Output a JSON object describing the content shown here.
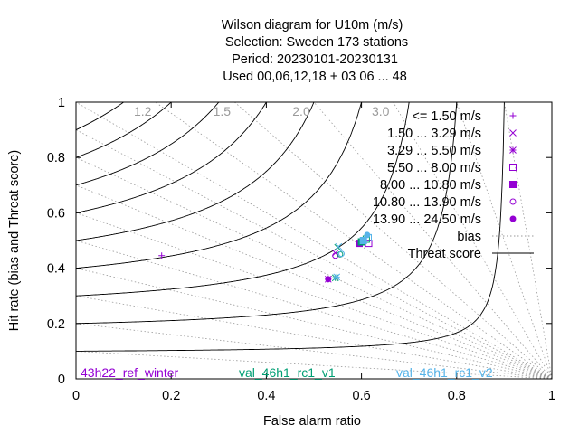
{
  "chart_data": {
    "type": "scatter",
    "title_lines": [
      "Wilson diagram  for U10m (m/s)",
      "Selection: Sweden     173 stations",
      "Period: 20230101-20230131",
      "Used  00,06,12,18  + 03 06 ... 48"
    ],
    "xlabel": "False alarm ratio",
    "ylabel": "Hit rate (bias and Threat score)",
    "xlim": [
      0,
      1
    ],
    "ylim": [
      0,
      1
    ],
    "x_ticks": [
      "0",
      "0.2",
      "0.4",
      "0.6",
      "0.8",
      "1"
    ],
    "y_ticks": [
      "0",
      "0.2",
      "0.4",
      "0.6",
      "0.8",
      "1"
    ],
    "bias_labels": [
      "1.2",
      "1.5",
      "2.0",
      "3.0"
    ],
    "bias_values": [
      1.2,
      1.5,
      2.0,
      3.0
    ],
    "threat_score_values": [
      0.1,
      0.2,
      0.3,
      0.4,
      0.5,
      0.6,
      0.7,
      0.8,
      0.9
    ],
    "legend_position": "top-right",
    "legend": [
      {
        "label": "<= 1.50 m/s",
        "marker": "plus"
      },
      {
        "label": "1.50 ... 3.29 m/s",
        "marker": "cross"
      },
      {
        "label": "3.29 ... 5.50 m/s",
        "marker": "star"
      },
      {
        "label": "5.50 ... 8.00 m/s",
        "marker": "square-open"
      },
      {
        "label": "8.00 ... 10.80 m/s",
        "marker": "square-filled"
      },
      {
        "label": "10.80 ... 13.90 m/s",
        "marker": "circle-open"
      },
      {
        "label": "13.90 ... 24.50 m/s",
        "marker": "circle-filled"
      },
      {
        "label": "bias",
        "marker": "dotted-line"
      },
      {
        "label": "Threat score",
        "marker": "solid-line"
      }
    ],
    "experiments": [
      {
        "name": "43h22_ref_winter",
        "color": "#9400d3"
      },
      {
        "name": "val_46h1_rc1_v1",
        "color": "#009e73"
      },
      {
        "name": "val_46h1_rc1_v2",
        "color": "#56b4e9"
      }
    ],
    "series": [
      {
        "experiment": 0,
        "class": 0,
        "x": 0.18,
        "y": 0.445
      },
      {
        "experiment": 0,
        "class": 1,
        "x": 0.545,
        "y": 0.455
      },
      {
        "experiment": 0,
        "class": 2,
        "x": 0.53,
        "y": 0.36
      },
      {
        "experiment": 0,
        "class": 3,
        "x": 0.615,
        "y": 0.49
      },
      {
        "experiment": 0,
        "class": 4,
        "x": 0.595,
        "y": 0.49
      },
      {
        "experiment": 0,
        "class": 5,
        "x": 0.545,
        "y": 0.445
      },
      {
        "experiment": 0,
        "class": 6,
        "x": 0.53,
        "y": 0.36
      },
      {
        "experiment": 1,
        "class": 1,
        "x": 0.55,
        "y": 0.475
      },
      {
        "experiment": 1,
        "class": 2,
        "x": 0.545,
        "y": 0.365
      },
      {
        "experiment": 1,
        "class": 3,
        "x": 0.61,
        "y": 0.505
      },
      {
        "experiment": 1,
        "class": 4,
        "x": 0.6,
        "y": 0.495
      },
      {
        "experiment": 1,
        "class": 5,
        "x": 0.555,
        "y": 0.45
      },
      {
        "experiment": 2,
        "class": 1,
        "x": 0.552,
        "y": 0.478
      },
      {
        "experiment": 2,
        "class": 2,
        "x": 0.548,
        "y": 0.368
      },
      {
        "experiment": 2,
        "class": 3,
        "x": 0.614,
        "y": 0.51
      },
      {
        "experiment": 2,
        "class": 4,
        "x": 0.604,
        "y": 0.5
      },
      {
        "experiment": 2,
        "class": 5,
        "x": 0.558,
        "y": 0.452
      },
      {
        "experiment": 2,
        "class": 6,
        "x": 0.612,
        "y": 0.52
      }
    ]
  }
}
